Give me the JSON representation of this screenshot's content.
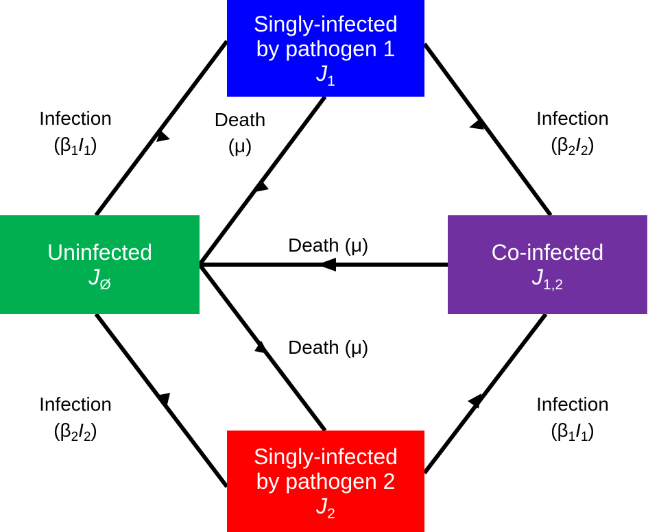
{
  "colors": {
    "singly_1": "#0000ff",
    "uninfected": "#00b050",
    "co_infected": "#7030a0",
    "singly_2": "#ff0000",
    "edges": "#000000"
  },
  "nodes": {
    "singly_1": {
      "line1": "Singly-infected",
      "line2": "by pathogen 1",
      "symbol": "J",
      "sub": "1"
    },
    "uninfected": {
      "line1": "Uninfected",
      "symbol": "J",
      "sub": "Ø"
    },
    "co_infected": {
      "line1": "Co-infected",
      "symbol": "J",
      "sub": "1,2"
    },
    "singly_2": {
      "line1": "Singly-infected",
      "line2": "by pathogen 2",
      "symbol": "J",
      "sub": "2"
    }
  },
  "labels": {
    "inf_top_left": {
      "word": "Infection",
      "open": "(β",
      "rsub": "1",
      "var": "I",
      "vsub": "1",
      "close": ")"
    },
    "inf_top_right": {
      "word": "Infection",
      "open": "(β",
      "rsub": "2",
      "var": "I",
      "vsub": "2",
      "close": ")"
    },
    "inf_bottom_left": {
      "word": "Infection",
      "open": "(β",
      "rsub": "2",
      "var": "I",
      "vsub": "2",
      "close": ")"
    },
    "inf_bottom_right": {
      "word": "Infection",
      "open": "(β",
      "rsub": "1",
      "var": "I",
      "vsub": "1",
      "close": ")"
    },
    "death_top": {
      "word": "Death",
      "rate": "(μ)"
    },
    "death_middle": "Death (μ)",
    "death_bottom": "Death (μ)"
  }
}
